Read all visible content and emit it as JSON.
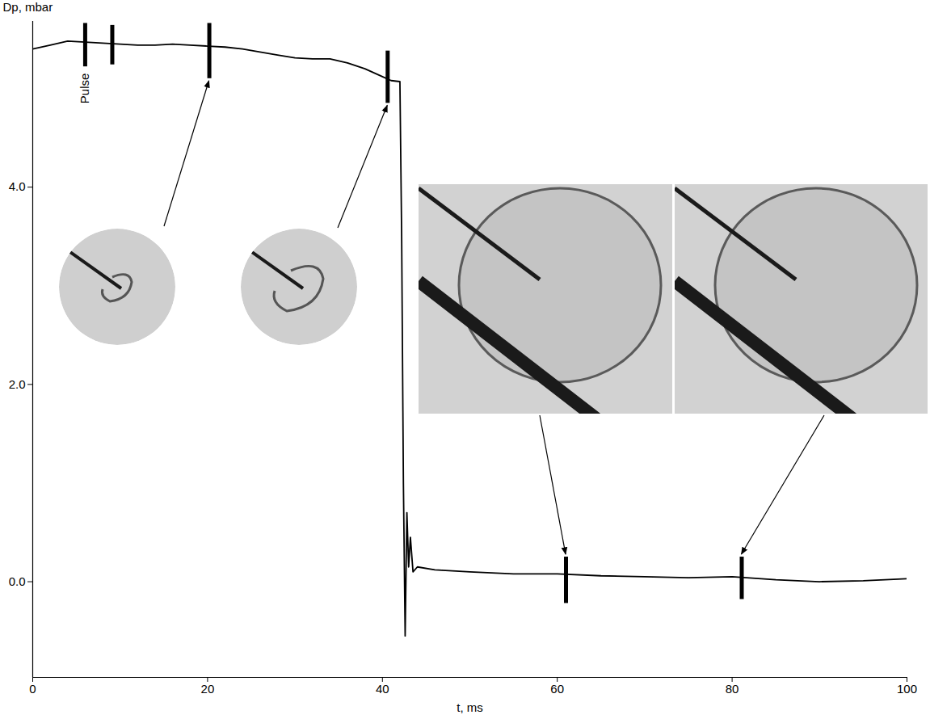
{
  "chart_data": {
    "type": "line",
    "x_label": "t, ms",
    "y_label": "Dp, mbar",
    "color": "#000000",
    "grid": false,
    "xlim": [
      0,
      100
    ],
    "ylim": [
      -0.97,
      5.68
    ],
    "xticks": [
      0,
      20,
      40,
      60,
      80,
      100
    ],
    "yticks": [
      0,
      2,
      4
    ],
    "x": [
      0,
      2,
      4,
      6,
      8,
      10,
      12,
      14,
      16,
      18,
      20,
      22,
      24,
      26,
      28,
      30,
      32,
      34,
      36,
      38,
      40,
      41,
      42,
      42.2,
      42.4,
      42.6,
      42.8,
      43.0,
      43.2,
      43.5,
      44,
      46,
      50,
      55,
      60,
      65,
      70,
      75,
      80,
      85,
      90,
      95,
      100
    ],
    "values": [
      5.4,
      5.44,
      5.48,
      5.47,
      5.46,
      5.45,
      5.44,
      5.44,
      5.45,
      5.44,
      5.43,
      5.42,
      5.4,
      5.37,
      5.34,
      5.31,
      5.3,
      5.3,
      5.26,
      5.2,
      5.12,
      5.08,
      5.07,
      3.5,
      1.0,
      -0.55,
      0.7,
      0.15,
      0.45,
      0.1,
      0.15,
      0.12,
      0.1,
      0.08,
      0.08,
      0.06,
      0.05,
      0.04,
      0.05,
      0.02,
      0.0,
      0.01,
      0.03
    ],
    "pulses": {
      "t": [
        6.0,
        9.1,
        20.2,
        40.6,
        61.0,
        81.1
      ],
      "lo": [
        5.22,
        5.24,
        5.1,
        4.85,
        -0.22,
        -0.18
      ],
      "hi": [
        5.66,
        5.64,
        5.66,
        5.38,
        0.25,
        0.25
      ]
    },
    "annotation": "Pulse"
  }
}
